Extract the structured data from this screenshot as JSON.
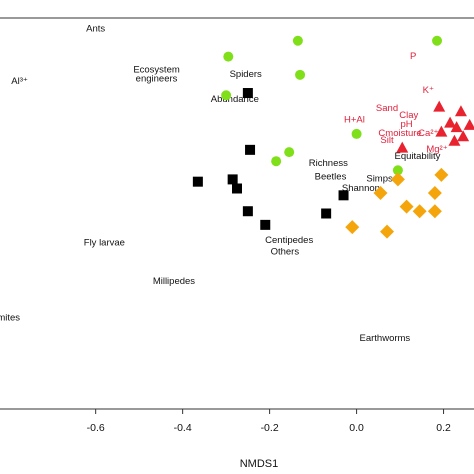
{
  "chart_data": {
    "type": "scatter",
    "xlabel": "NMDS1",
    "ylabel": "",
    "xlim": [
      -0.82,
      0.27
    ],
    "ylim": [
      -0.53,
      0.33
    ],
    "x_ticks": [
      "-0.6",
      "-0.4",
      "-0.2",
      "0.0",
      "0.2"
    ],
    "x_tick_values": [
      -0.6,
      -0.4,
      -0.2,
      0.0,
      0.2
    ],
    "colors": {
      "green": "#7fe01a",
      "black": "#000000",
      "orange": "#f5a50c",
      "red": "#e8232f"
    },
    "series": [
      {
        "marker": "circle",
        "color": "#7fe01a",
        "points": [
          [
            -0.135,
            0.28
          ],
          [
            0.185,
            0.28
          ],
          [
            -0.295,
            0.245
          ],
          [
            -0.13,
            0.205
          ],
          [
            -0.3,
            0.16
          ],
          [
            0.0,
            0.075
          ],
          [
            -0.155,
            0.035
          ],
          [
            -0.185,
            0.015
          ],
          [
            0.095,
            -0.005
          ]
        ]
      },
      {
        "marker": "square",
        "color": "#000000",
        "points": [
          [
            -0.25,
            0.165
          ],
          [
            -0.245,
            0.04
          ],
          [
            -0.365,
            -0.03
          ],
          [
            -0.285,
            -0.025
          ],
          [
            -0.275,
            -0.045
          ],
          [
            -0.03,
            -0.06
          ],
          [
            -0.25,
            -0.095
          ],
          [
            -0.07,
            -0.1
          ],
          [
            -0.21,
            -0.125
          ]
        ]
      },
      {
        "marker": "diamond",
        "color": "#f5a50c",
        "points": [
          [
            0.095,
            -0.025
          ],
          [
            0.195,
            -0.015
          ],
          [
            0.055,
            -0.055
          ],
          [
            0.18,
            -0.055
          ],
          [
            0.115,
            -0.085
          ],
          [
            0.145,
            -0.095
          ],
          [
            0.18,
            -0.095
          ],
          [
            -0.01,
            -0.13
          ],
          [
            0.07,
            -0.14
          ]
        ]
      },
      {
        "marker": "triangle",
        "color": "#e8232f",
        "points": [
          [
            0.19,
            0.135
          ],
          [
            0.24,
            0.125
          ],
          [
            0.215,
            0.1
          ],
          [
            0.26,
            0.095
          ],
          [
            0.23,
            0.09
          ],
          [
            0.195,
            0.08
          ],
          [
            0.245,
            0.07
          ],
          [
            0.225,
            0.06
          ],
          [
            0.105,
            0.045
          ]
        ]
      }
    ],
    "annotations": [
      {
        "text": "Ants",
        "x": -0.6,
        "y": 0.3,
        "color": "black"
      },
      {
        "text": "Ecosystem",
        "x": -0.46,
        "y": 0.21,
        "color": "black"
      },
      {
        "text": "engineers",
        "x": -0.46,
        "y": 0.19,
        "color": "black"
      },
      {
        "text": "Spiders",
        "x": -0.255,
        "y": 0.2,
        "color": "black"
      },
      {
        "text": "Abundance",
        "x": -0.28,
        "y": 0.145,
        "color": "black"
      },
      {
        "text": "Al³⁺",
        "x": -0.775,
        "y": 0.185,
        "color": "black"
      },
      {
        "text": "Richness",
        "x": -0.065,
        "y": 0.005,
        "color": "black"
      },
      {
        "text": "Beetles",
        "x": -0.06,
        "y": -0.025,
        "color": "black"
      },
      {
        "text": "Shannon",
        "x": 0.01,
        "y": -0.05,
        "color": "black"
      },
      {
        "text": "Simpson",
        "x": 0.065,
        "y": -0.03,
        "color": "black"
      },
      {
        "text": "Equitability",
        "x": 0.14,
        "y": 0.02,
        "color": "black"
      },
      {
        "text": "Centipedes",
        "x": -0.155,
        "y": -0.165,
        "color": "black"
      },
      {
        "text": "Others",
        "x": -0.165,
        "y": -0.19,
        "color": "black"
      },
      {
        "text": "Fly larvae",
        "x": -0.58,
        "y": -0.17,
        "color": "black"
      },
      {
        "text": "Millipedes",
        "x": -0.42,
        "y": -0.255,
        "color": "black"
      },
      {
        "text": "mites",
        "x": -0.8,
        "y": -0.335,
        "color": "black"
      },
      {
        "text": "Earthworms",
        "x": 0.065,
        "y": -0.38,
        "color": "black"
      },
      {
        "text": "P",
        "x": 0.13,
        "y": 0.24,
        "color": "red"
      },
      {
        "text": "K⁺",
        "x": 0.165,
        "y": 0.165,
        "color": "red"
      },
      {
        "text": "Sand",
        "x": 0.07,
        "y": 0.125,
        "color": "red"
      },
      {
        "text": "Clay",
        "x": 0.12,
        "y": 0.11,
        "color": "red"
      },
      {
        "text": "H+Al",
        "x": -0.005,
        "y": 0.1,
        "color": "red"
      },
      {
        "text": "pH",
        "x": 0.115,
        "y": 0.09,
        "color": "red"
      },
      {
        "text": "Cmoisture",
        "x": 0.1,
        "y": 0.07,
        "color": "red"
      },
      {
        "text": "Silt",
        "x": 0.07,
        "y": 0.055,
        "color": "red"
      },
      {
        "text": "Ca²⁺",
        "x": 0.165,
        "y": 0.07,
        "color": "red"
      },
      {
        "text": "Mg²⁺",
        "x": 0.185,
        "y": 0.035,
        "color": "red"
      }
    ]
  }
}
